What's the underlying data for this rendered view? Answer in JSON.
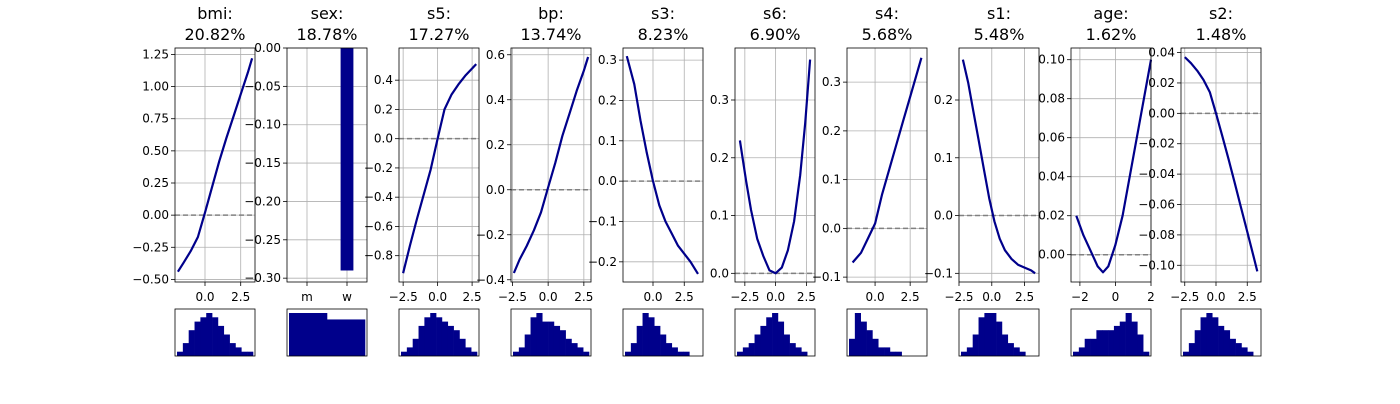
{
  "chart_data": {
    "type": "line",
    "colors": {
      "curve": "#00008b",
      "zero_line": "#808080",
      "hist": "#00008b",
      "grid": "#b0b0b0"
    },
    "grid": true,
    "panels": [
      {
        "feature": "bmi",
        "importance": "20.82%",
        "title_line1": "bmi:",
        "title_line2": "20.82%",
        "x": [
          -1.9,
          -1.5,
          -1.0,
          -0.5,
          0.0,
          0.5,
          1.0,
          1.5,
          2.0,
          2.5,
          3.0,
          3.3
        ],
        "y": [
          -0.44,
          -0.37,
          -0.28,
          -0.17,
          0.02,
          0.22,
          0.42,
          0.6,
          0.77,
          0.94,
          1.11,
          1.22
        ],
        "xlim": [
          -2.1,
          3.5
        ],
        "ylim": [
          -0.52,
          1.3
        ],
        "xticks": [
          0,
          2.5
        ],
        "xtick_labels": [
          "0.0",
          "2.5"
        ],
        "yticks": [
          -0.5,
          -0.25,
          0,
          0.25,
          0.5,
          0.75,
          1.0,
          1.25
        ],
        "ytick_labels": [
          "−0.50",
          "−0.25",
          "0.00",
          "0.25",
          "0.50",
          "0.75",
          "1.00",
          "1.25"
        ],
        "hist": [
          1,
          3,
          6,
          8,
          9,
          10,
          9,
          7,
          5,
          3,
          2,
          1,
          1
        ]
      },
      {
        "feature": "sex",
        "importance": "18.78%",
        "title_line1": "sex:",
        "title_line2": "18.78%",
        "kind": "bar",
        "categories": [
          "m",
          "w"
        ],
        "values": [
          0.0,
          -0.29
        ],
        "ylim": [
          -0.305,
          0.0
        ],
        "yticks": [
          0,
          -0.05,
          -0.1,
          -0.15,
          -0.2,
          -0.25,
          -0.3
        ],
        "ytick_labels": [
          "0.00",
          "−0.05",
          "−0.10",
          "−0.15",
          "−0.20",
          "−0.25",
          "−0.30"
        ],
        "hist": [
          10,
          8.5
        ]
      },
      {
        "feature": "s5",
        "importance": "17.27%",
        "title_line1": "s5:",
        "title_line2": "17.27%",
        "x": [
          -2.5,
          -2.0,
          -1.5,
          -1.0,
          -0.5,
          0.0,
          0.5,
          1.0,
          1.5,
          2.0,
          2.5,
          2.8
        ],
        "y": [
          -0.92,
          -0.73,
          -0.55,
          -0.38,
          -0.21,
          0.0,
          0.2,
          0.3,
          0.37,
          0.43,
          0.48,
          0.51
        ],
        "xlim": [
          -2.8,
          3.0
        ],
        "ylim": [
          -0.98,
          0.62
        ],
        "xticks": [
          -2.5,
          0,
          2.5
        ],
        "xtick_labels": [
          "−2.5",
          "0.0",
          "2.5"
        ],
        "yticks": [
          -0.8,
          -0.6,
          -0.4,
          -0.2,
          0,
          0.2,
          0.4
        ],
        "ytick_labels": [
          "−0.8",
          "−0.6",
          "−0.4",
          "−0.2",
          "0.0",
          "0.2",
          "0.4"
        ],
        "hist": [
          1,
          2,
          4,
          7,
          9,
          10,
          9,
          8,
          7,
          6,
          4,
          2,
          1
        ]
      },
      {
        "feature": "bp",
        "importance": "13.74%",
        "title_line1": "bp:",
        "title_line2": "13.74%",
        "x": [
          -2.4,
          -2.0,
          -1.5,
          -1.0,
          -0.5,
          0.0,
          0.5,
          1.0,
          1.5,
          2.0,
          2.5,
          2.8
        ],
        "y": [
          -0.37,
          -0.31,
          -0.25,
          -0.18,
          -0.1,
          0.01,
          0.12,
          0.24,
          0.34,
          0.44,
          0.53,
          0.59
        ],
        "xlim": [
          -2.6,
          3.0
        ],
        "ylim": [
          -0.41,
          0.63
        ],
        "xticks": [
          -2.5,
          0,
          2.5
        ],
        "xtick_labels": [
          "−2.5",
          "0.0",
          "2.5"
        ],
        "yticks": [
          -0.4,
          -0.2,
          0,
          0.2,
          0.4,
          0.6
        ],
        "ytick_labels": [
          "−0.4",
          "−0.2",
          "0.0",
          "0.2",
          "0.4",
          "0.6"
        ],
        "hist": [
          1,
          2,
          5,
          9,
          10,
          8,
          8,
          7,
          6,
          4,
          3,
          2,
          1
        ]
      },
      {
        "feature": "s3",
        "importance": "8.23%",
        "title_line1": "s3:",
        "title_line2": "8.23%",
        "x": [
          -2.1,
          -1.5,
          -1.0,
          -0.5,
          0.0,
          0.5,
          1.0,
          1.5,
          2.0,
          2.5,
          3.0,
          3.6
        ],
        "y": [
          0.31,
          0.24,
          0.15,
          0.07,
          0.0,
          -0.06,
          -0.1,
          -0.13,
          -0.16,
          -0.18,
          -0.2,
          -0.23
        ],
        "xlim": [
          -2.4,
          4.0
        ],
        "ylim": [
          -0.25,
          0.33
        ],
        "xticks": [
          0,
          2.5
        ],
        "xtick_labels": [
          "0.0",
          "2.5"
        ],
        "yticks": [
          -0.2,
          -0.1,
          0,
          0.1,
          0.2,
          0.3
        ],
        "ytick_labels": [
          "−0.2",
          "−0.1",
          "0.0",
          "0.1",
          "0.2",
          "0.3"
        ],
        "hist": [
          1,
          3,
          7,
          10,
          9,
          7,
          5,
          3,
          2,
          1,
          1,
          0,
          0
        ]
      },
      {
        "feature": "s6",
        "importance": "6.90%",
        "title_line1": "s6:",
        "title_line2": "6.90%",
        "x": [
          -2.9,
          -2.4,
          -2.0,
          -1.5,
          -1.0,
          -0.5,
          0.0,
          0.5,
          1.0,
          1.5,
          2.0,
          2.4,
          2.8
        ],
        "y": [
          0.23,
          0.16,
          0.11,
          0.06,
          0.03,
          0.005,
          0.0,
          0.01,
          0.04,
          0.09,
          0.17,
          0.26,
          0.37
        ],
        "xlim": [
          -3.3,
          3.2
        ],
        "ylim": [
          -0.015,
          0.39
        ],
        "xticks": [
          -2.5,
          0,
          2.5
        ],
        "xtick_labels": [
          "−2.5",
          "0.0",
          "2.5"
        ],
        "yticks": [
          0,
          0.1,
          0.2,
          0.3
        ],
        "ytick_labels": [
          "0.0",
          "0.1",
          "0.2",
          "0.3"
        ],
        "hist": [
          1,
          2,
          3,
          5,
          7,
          9,
          10,
          8,
          5,
          3,
          2,
          1,
          0
        ]
      },
      {
        "feature": "s4",
        "importance": "5.68%",
        "title_line1": "s4:",
        "title_line2": "5.68%",
        "x": [
          -1.6,
          -1.0,
          -0.5,
          0.0,
          0.5,
          1.0,
          1.5,
          2.0,
          2.5,
          3.0,
          3.3
        ],
        "y": [
          -0.07,
          -0.05,
          -0.02,
          0.01,
          0.07,
          0.12,
          0.17,
          0.22,
          0.27,
          0.32,
          0.35
        ],
        "xlim": [
          -2.0,
          3.7
        ],
        "ylim": [
          -0.11,
          0.37
        ],
        "xticks": [
          0,
          2.5
        ],
        "xtick_labels": [
          "0.0",
          "2.5"
        ],
        "yticks": [
          -0.1,
          0,
          0.1,
          0.2,
          0.3
        ],
        "ytick_labels": [
          "−0.1",
          "0.0",
          "0.1",
          "0.2",
          "0.3"
        ],
        "hist": [
          4,
          10,
          8,
          6,
          4,
          2,
          2,
          1,
          1,
          0,
          0,
          0,
          0
        ]
      },
      {
        "feature": "s1",
        "importance": "5.48%",
        "title_line1": "s1:",
        "title_line2": "5.48%",
        "x": [
          -2.2,
          -1.8,
          -1.4,
          -1.0,
          -0.6,
          -0.2,
          0.2,
          0.6,
          1.0,
          1.5,
          2.0,
          2.5,
          3.0,
          3.3
        ],
        "y": [
          0.27,
          0.23,
          0.18,
          0.13,
          0.08,
          0.03,
          -0.01,
          -0.04,
          -0.06,
          -0.075,
          -0.085,
          -0.09,
          -0.095,
          -0.1
        ],
        "xlim": [
          -2.5,
          3.6
        ],
        "ylim": [
          -0.115,
          0.29
        ],
        "xticks": [
          -2.5,
          0,
          2.5
        ],
        "xtick_labels": [
          "−2.5",
          "0.0",
          "2.5"
        ],
        "yticks": [
          -0.1,
          0,
          0.1,
          0.2
        ],
        "ytick_labels": [
          "−0.1",
          "0.0",
          "0.1",
          "0.2"
        ],
        "hist": [
          1,
          2,
          5,
          9,
          10,
          10,
          8,
          5,
          3,
          2,
          1,
          0,
          0
        ]
      },
      {
        "feature": "age",
        "importance": "1.62%",
        "title_line1": "age:",
        "title_line2": "1.62%",
        "x": [
          -2.2,
          -1.8,
          -1.4,
          -1.0,
          -0.7,
          -0.4,
          0.0,
          0.4,
          0.8,
          1.2,
          1.6,
          2.0
        ],
        "y": [
          0.02,
          0.01,
          0.002,
          -0.006,
          -0.009,
          -0.006,
          0.005,
          0.02,
          0.04,
          0.06,
          0.08,
          0.1
        ],
        "xlim": [
          -2.5,
          2.0
        ],
        "ylim": [
          -0.014,
          0.106
        ],
        "xticks": [
          -2,
          0,
          2
        ],
        "xtick_labels": [
          "−2",
          "0",
          "2"
        ],
        "yticks": [
          0,
          0.02,
          0.04,
          0.06,
          0.08,
          0.1
        ],
        "ytick_labels": [
          "0.00",
          "0.02",
          "0.04",
          "0.06",
          "0.08",
          "0.10"
        ],
        "hist": [
          1,
          2,
          4,
          4,
          6,
          6,
          6,
          7,
          8,
          10,
          8,
          5,
          1
        ]
      },
      {
        "feature": "s2",
        "importance": "1.48%",
        "title_line1": "s2:",
        "title_line2": "1.48%",
        "x": [
          -2.5,
          -2.0,
          -1.5,
          -1.0,
          -0.5,
          0.0,
          0.5,
          1.0,
          1.5,
          2.0,
          2.5,
          3.0,
          3.3
        ],
        "y": [
          0.037,
          0.033,
          0.028,
          0.022,
          0.014,
          0.0,
          -0.015,
          -0.03,
          -0.046,
          -0.062,
          -0.078,
          -0.094,
          -0.104
        ],
        "xlim": [
          -2.8,
          3.6
        ],
        "ylim": [
          -0.111,
          0.043
        ],
        "xticks": [
          -2.5,
          0,
          2.5
        ],
        "xtick_labels": [
          "−2.5",
          "0.0",
          "2.5"
        ],
        "yticks": [
          0.04,
          0.02,
          0,
          -0.02,
          -0.04,
          -0.06,
          -0.08,
          -0.1
        ],
        "ytick_labels": [
          "0.04",
          "0.02",
          "0.00",
          "−0.02",
          "−0.04",
          "−0.06",
          "−0.08",
          "−0.10"
        ],
        "hist": [
          1,
          3,
          6,
          9,
          10,
          9,
          7,
          6,
          4,
          3,
          2,
          1,
          0
        ]
      }
    ]
  }
}
